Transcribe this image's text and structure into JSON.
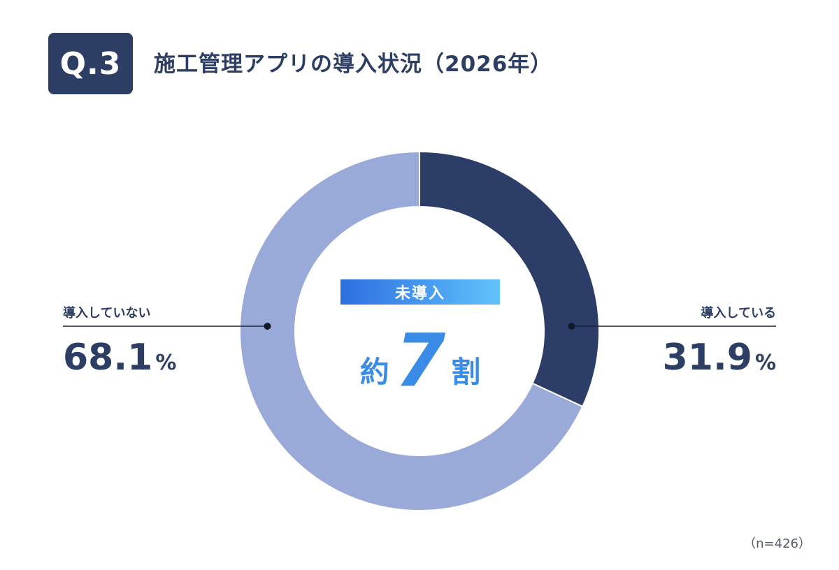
{
  "header": {
    "question_number": "Q.3",
    "title": "施工管理アプリの導入状況（2026年）"
  },
  "chart_data": {
    "type": "pie",
    "categories": [
      "導入している",
      "導入していない"
    ],
    "values": [
      31.9,
      68.1
    ],
    "value_labels": [
      "31.9",
      "68.1"
    ],
    "unit": "%",
    "colors": [
      "#2c3e68",
      "#9aaad8"
    ]
  },
  "center": {
    "badge": "未導入",
    "prefix": "約",
    "number": "7",
    "suffix": "割"
  },
  "note": "（n=426）"
}
